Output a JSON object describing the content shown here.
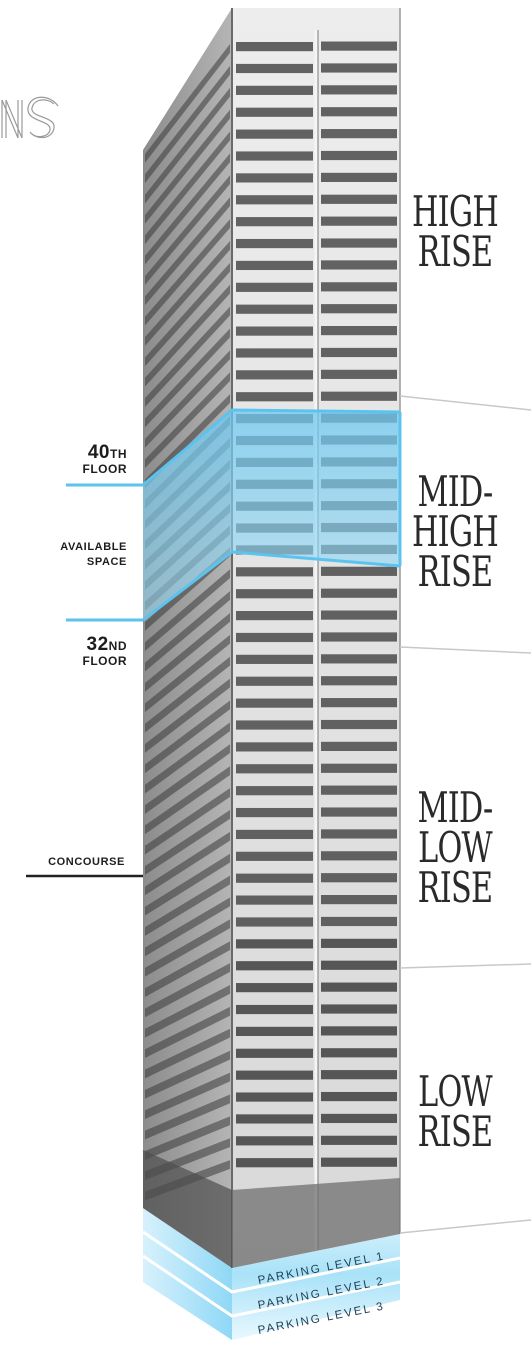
{
  "brand": {
    "partial_text": "NS"
  },
  "zones": [
    {
      "id": "high-rise",
      "line1": "HIGH",
      "line2": "RISE",
      "line3": ""
    },
    {
      "id": "mid-high-rise",
      "line1": "MID-",
      "line2": "HIGH",
      "line3": "RISE"
    },
    {
      "id": "mid-low-rise",
      "line1": "MID-",
      "line2": "LOW",
      "line3": "RISE"
    },
    {
      "id": "low-rise",
      "line1": "LOW",
      "line2": "RISE",
      "line3": ""
    }
  ],
  "available_space": {
    "top_floor_number": "40",
    "top_floor_suffix": "TH",
    "top_floor_word": "FLOOR",
    "label_line1": "AVAILABLE",
    "label_line2": "SPACE",
    "bottom_floor_number": "32",
    "bottom_floor_suffix": "ND",
    "bottom_floor_word": "FLOOR"
  },
  "concourse_label": "CONCOURSE",
  "parking_levels": [
    "PARKING LEVEL 1",
    "PARKING LEVEL 2",
    "PARKING LEVEL 3"
  ],
  "colors": {
    "highlight_blue": "#7fd0f2",
    "highlight_line": "#5cc3ee",
    "divider_gray": "#c8c8c8",
    "text_dark": "#1d1d1d"
  }
}
